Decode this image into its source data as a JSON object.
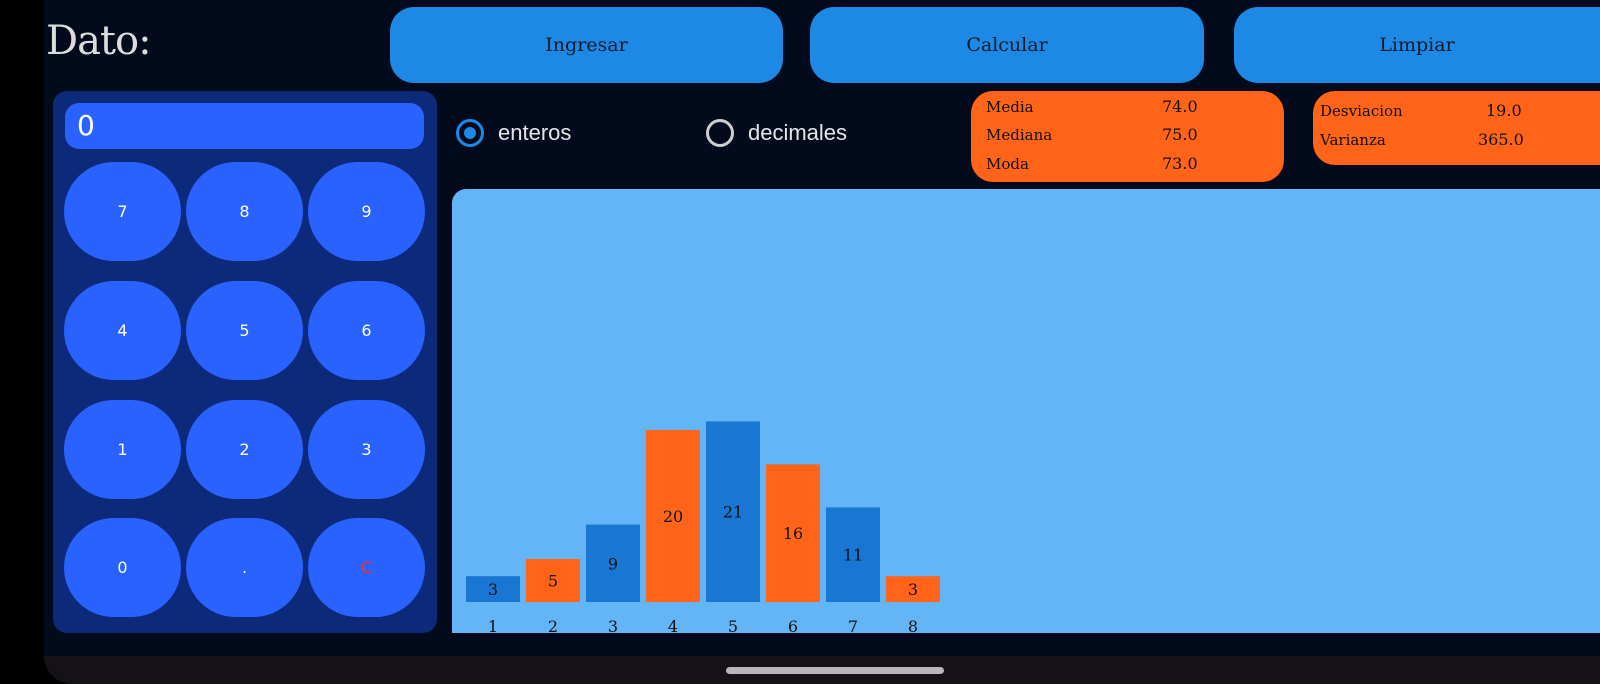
{
  "header": {
    "dato_label": "Dato:",
    "buttons": {
      "ingresar": "Ingresar",
      "calcular": "Calcular",
      "limpiar": "Limpiar"
    }
  },
  "keypad": {
    "display_value": "0",
    "keys": [
      "7",
      "8",
      "9",
      "4",
      "5",
      "6",
      "1",
      "2",
      "3",
      "0",
      ".",
      "C"
    ]
  },
  "mode": {
    "options": [
      "enteros",
      "decimales"
    ],
    "selected": "enteros"
  },
  "stats": {
    "media_label": "Media",
    "media_value": "74.0",
    "mediana_label": "Mediana",
    "mediana_value": "75.0",
    "moda_label": "Moda",
    "moda_value": "73.0",
    "desviacion_label": "Desviacion",
    "desviacion_value": "19.0",
    "varianza_label": "Varianza",
    "varianza_value": "365.0"
  },
  "colors": {
    "primary_blue": "#1e88e5",
    "keypad_blue": "#2962ff",
    "orange": "#ff6418",
    "chart_bg": "#64b5f6",
    "bar_blue": "#1976d2"
  },
  "chart_data": {
    "type": "bar",
    "categories": [
      "1",
      "2",
      "3",
      "4",
      "5",
      "6",
      "7",
      "8"
    ],
    "values": [
      3,
      5,
      9,
      20,
      21,
      16,
      11,
      3
    ],
    "bar_colors": [
      "blue",
      "orange",
      "blue",
      "orange",
      "blue",
      "orange",
      "blue",
      "orange"
    ],
    "title": "",
    "xlabel": "",
    "ylabel": "",
    "grid": false
  }
}
